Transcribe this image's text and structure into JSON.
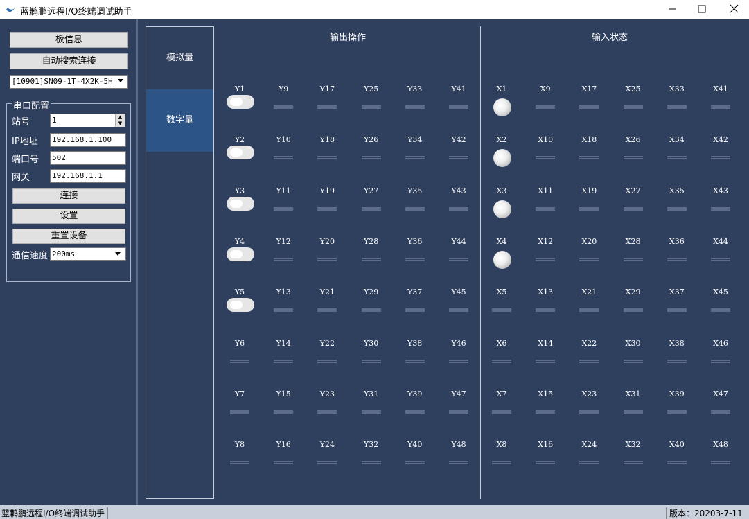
{
  "window": {
    "title": "蓝鹣鹏远程I/O终端调试助手"
  },
  "left_panel": {
    "buttons": [
      "板信息",
      "自动搜索连接"
    ],
    "device_select": "[10901]SN09-1T-4X2K-5H",
    "serial_config": {
      "title": "串口配置",
      "fields": [
        {
          "label": "站号",
          "value": "1"
        },
        {
          "label": "IP地址",
          "value": "192.168.1.100"
        },
        {
          "label": "端口号",
          "value": "502"
        },
        {
          "label": "网关",
          "value": "192.168.1.1"
        }
      ],
      "buttons": [
        "连接",
        "设置",
        "重置设备"
      ],
      "speed": {
        "label": "通信速度",
        "value": "200ms"
      }
    }
  },
  "tabs": [
    "模拟量",
    "数字量"
  ],
  "outputs": {
    "title": "输出操作",
    "labels": [
      "Y1",
      "Y2",
      "Y3",
      "Y4",
      "Y5",
      "Y6",
      "Y7",
      "Y8",
      "Y9",
      "Y10",
      "Y11",
      "Y12",
      "Y13",
      "Y14",
      "Y15",
      "Y16",
      "Y17",
      "Y18",
      "Y19",
      "Y20",
      "Y21",
      "Y22",
      "Y23",
      "Y24",
      "Y25",
      "Y26",
      "Y27",
      "Y28",
      "Y29",
      "Y30",
      "Y31",
      "Y32",
      "Y33",
      "Y34",
      "Y35",
      "Y36",
      "Y37",
      "Y38",
      "Y39",
      "Y40",
      "Y41",
      "Y42",
      "Y43",
      "Y44",
      "Y45",
      "Y46",
      "Y47",
      "Y48"
    ]
  },
  "inputs": {
    "title": "输入状态",
    "labels": [
      "X1",
      "X2",
      "X3",
      "X4",
      "X5",
      "X6",
      "X7",
      "X8",
      "X9",
      "X10",
      "X11",
      "X12",
      "X13",
      "X14",
      "X15",
      "X16",
      "X17",
      "X18",
      "X19",
      "X20",
      "X21",
      "X22",
      "X23",
      "X24",
      "X25",
      "X26",
      "X27",
      "X28",
      "X29",
      "X30",
      "X31",
      "X32",
      "X33",
      "X34",
      "X35",
      "X36",
      "X37",
      "X38",
      "X39",
      "X40",
      "X41",
      "X42",
      "X43",
      "X44",
      "X45",
      "X46",
      "X47",
      "X48"
    ]
  },
  "status_bar": {
    "app": "蓝鹣鹏远程I/O终端调试助手",
    "version": "版本：20203-7-11"
  }
}
